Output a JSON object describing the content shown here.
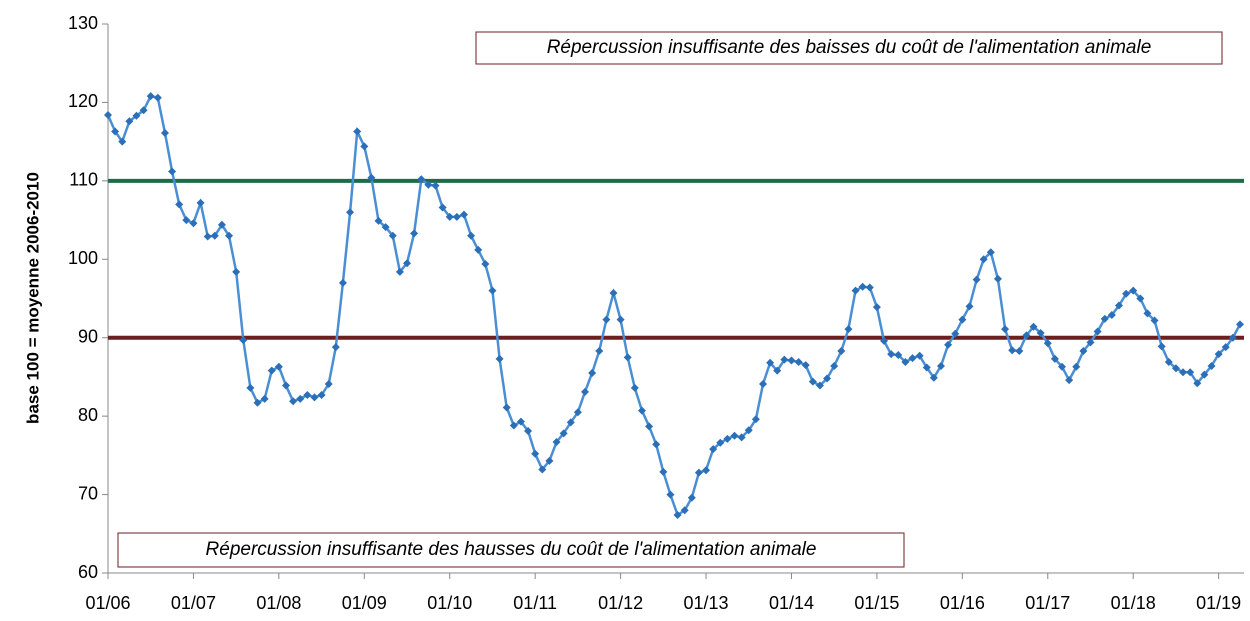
{
  "chart_data": {
    "type": "line",
    "y_label": "base 100 = moyenne 2006-2010",
    "categories": [
      "01/06",
      null,
      null,
      null,
      null,
      null,
      null,
      null,
      null,
      null,
      null,
      null,
      "01/07",
      null,
      null,
      null,
      null,
      null,
      null,
      null,
      null,
      null,
      null,
      null,
      "01/08",
      null,
      null,
      null,
      null,
      null,
      null,
      null,
      null,
      null,
      null,
      null,
      "01/09",
      null,
      null,
      null,
      null,
      null,
      null,
      null,
      null,
      null,
      null,
      null,
      "01/10",
      null,
      null,
      null,
      null,
      null,
      null,
      null,
      null,
      null,
      null,
      null,
      "01/11",
      null,
      null,
      null,
      null,
      null,
      null,
      null,
      null,
      null,
      null,
      null,
      "01/12",
      null,
      null,
      null,
      null,
      null,
      null,
      null,
      null,
      null,
      null,
      null,
      "01/13",
      null,
      null,
      null,
      null,
      null,
      null,
      null,
      null,
      null,
      null,
      null,
      "01/14",
      null,
      null,
      null,
      null,
      null,
      null,
      null,
      null,
      null,
      null,
      null,
      "01/15",
      null,
      null,
      null,
      null,
      null,
      null,
      null,
      null,
      null,
      null,
      null,
      "01/16",
      null,
      null,
      null,
      null,
      null,
      null,
      null,
      null,
      null,
      null,
      null,
      "01/17",
      null,
      null,
      null,
      null,
      null,
      null,
      null,
      null,
      null,
      null,
      null,
      "01/18",
      null,
      null,
      null,
      null,
      null,
      null,
      null,
      null,
      null,
      null,
      null,
      "01/19",
      null,
      null,
      null
    ],
    "values": [
      118.4,
      116.3,
      115.0,
      117.6,
      118.3,
      119.0,
      120.8,
      120.6,
      116.1,
      111.2,
      107.0,
      105.0,
      104.6,
      107.2,
      102.9,
      103.0,
      104.4,
      103.0,
      98.4,
      89.7,
      83.6,
      81.7,
      82.2,
      85.8,
      86.3,
      83.9,
      81.9,
      82.2,
      82.7,
      82.4,
      82.7,
      84.1,
      88.8,
      97.0,
      106.0,
      116.3,
      114.4,
      110.4,
      104.9,
      104.1,
      103.0,
      98.4,
      99.5,
      103.3,
      110.2,
      109.5,
      109.4,
      106.6,
      105.4,
      105.4,
      105.7,
      103.0,
      101.2,
      99.4,
      96.0,
      87.3,
      81.1,
      78.8,
      79.3,
      78.1,
      75.2,
      73.2,
      74.3,
      76.7,
      77.8,
      79.2,
      80.5,
      83.1,
      85.5,
      88.3,
      92.3,
      95.7,
      92.3,
      87.5,
      83.6,
      80.7,
      78.7,
      76.4,
      72.9,
      70.0,
      67.4,
      68.0,
      69.6,
      72.8,
      73.1,
      75.8,
      76.6,
      77.1,
      77.5,
      77.3,
      78.2,
      79.6,
      84.1,
      86.8,
      85.8,
      87.2,
      87.1,
      86.9,
      86.5,
      84.4,
      83.9,
      84.8,
      86.4,
      88.3,
      91.1,
      96.0,
      96.5,
      96.4,
      93.9,
      89.6,
      87.9,
      87.8,
      86.9,
      87.4,
      87.7,
      86.2,
      84.9,
      86.4,
      89.1,
      90.5,
      92.3,
      94.0,
      97.4,
      100.0,
      100.9,
      97.5,
      91.1,
      88.4,
      88.3,
      90.3,
      91.4,
      90.6,
      89.3,
      87.3,
      86.3,
      84.6,
      86.3,
      88.3,
      89.4,
      90.8,
      92.4,
      92.9,
      94.1,
      95.6,
      96.0,
      95.0,
      93.1,
      92.2,
      88.9,
      86.9,
      86.1,
      85.6,
      85.6,
      84.2,
      85.3,
      86.4,
      87.9,
      88.8,
      90.0,
      91.7
    ],
    "color": "#4a8fd4",
    "marker_color": "#2a6fb8",
    "ylim": [
      60,
      130
    ],
    "yticks": [
      60,
      70,
      80,
      90,
      100,
      110,
      120,
      130
    ],
    "reference_lines": [
      {
        "value": 110,
        "color": "#1e6b4a"
      },
      {
        "value": 90,
        "color": "#6b1f1f"
      }
    ],
    "annotations": [
      "Répercussion insuffisante des baisses du coût de l'alimentation animale",
      "Répercussion insuffisante des hausses du coût de l'alimentation animale"
    ]
  }
}
